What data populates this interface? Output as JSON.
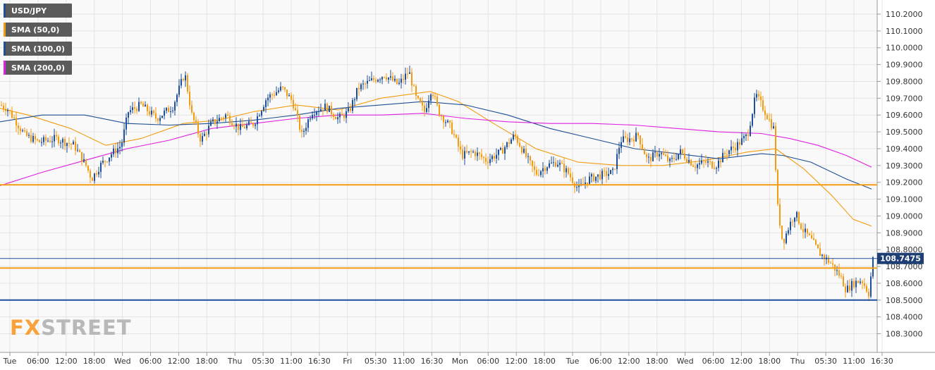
{
  "legend": [
    {
      "label": "USD/JPY",
      "color": "#1e4e9c"
    },
    {
      "label": "SMA (50,0)",
      "color": "#f39c12"
    },
    {
      "label": "SMA (100,0)",
      "color": "#1f4f95"
    },
    {
      "label": "SMA (200,0)",
      "color": "#e020e0"
    }
  ],
  "logo": {
    "fx": "FX",
    "rest": "STREET"
  },
  "chart_data": {
    "type": "candlestick",
    "symbol": "USD/JPY",
    "ylim": [
      108.25,
      110.25
    ],
    "y_ticks": [
      "110.2000",
      "110.1000",
      "110.0000",
      "109.9000",
      "109.8000",
      "109.7000",
      "109.6000",
      "109.5000",
      "109.4000",
      "109.3000",
      "109.2000",
      "109.1000",
      "109.0000",
      "108.9000",
      "108.8000",
      "108.7000",
      "108.6000",
      "108.5000",
      "108.4000",
      "108.3000"
    ],
    "x_ticks": [
      "Tue",
      "06:00",
      "12:00",
      "18:00",
      "Wed",
      "06:00",
      "12:00",
      "18:00",
      "Thu",
      "05:30",
      "11:00",
      "16:30",
      "Fri",
      "05:30",
      "11:00",
      "16:30",
      "Mon",
      "06:00",
      "12:00",
      "18:00",
      "Tue",
      "06:00",
      "12:00",
      "18:00",
      "Wed",
      "06:00",
      "12:00",
      "18:00",
      "Thu",
      "05:30",
      "11:00",
      "16:30"
    ],
    "current_price": "108.7475",
    "horizontal_levels": [
      {
        "value": 109.185,
        "color": "#f39c12"
      },
      {
        "value": 108.69,
        "color": "#f39c12"
      },
      {
        "value": 108.5,
        "color": "#1e4e9c"
      },
      {
        "value": 108.7475,
        "color": "#1e4e9c"
      }
    ],
    "price_path": [
      [
        0,
        109.66
      ],
      [
        10,
        109.64
      ],
      [
        20,
        109.58
      ],
      [
        35,
        109.48
      ],
      [
        55,
        109.44
      ],
      [
        80,
        109.46
      ],
      [
        105,
        109.42
      ],
      [
        122,
        109.3
      ],
      [
        130,
        109.22
      ],
      [
        142,
        109.3
      ],
      [
        158,
        109.37
      ],
      [
        172,
        109.42
      ],
      [
        182,
        109.62
      ],
      [
        200,
        109.66
      ],
      [
        222,
        109.58
      ],
      [
        245,
        109.65
      ],
      [
        262,
        109.85
      ],
      [
        272,
        109.6
      ],
      [
        285,
        109.45
      ],
      [
        300,
        109.55
      ],
      [
        320,
        109.6
      ],
      [
        340,
        109.52
      ],
      [
        360,
        109.55
      ],
      [
        378,
        109.7
      ],
      [
        400,
        109.76
      ],
      [
        415,
        109.68
      ],
      [
        428,
        109.48
      ],
      [
        442,
        109.62
      ],
      [
        462,
        109.65
      ],
      [
        480,
        109.58
      ],
      [
        495,
        109.62
      ],
      [
        508,
        109.76
      ],
      [
        525,
        109.8
      ],
      [
        545,
        109.84
      ],
      [
        565,
        109.78
      ],
      [
        580,
        109.86
      ],
      [
        590,
        109.7
      ],
      [
        602,
        109.62
      ],
      [
        612,
        109.76
      ],
      [
        622,
        109.62
      ],
      [
        640,
        109.52
      ],
      [
        655,
        109.36
      ],
      [
        672,
        109.38
      ],
      [
        690,
        109.33
      ],
      [
        710,
        109.38
      ],
      [
        730,
        109.48
      ],
      [
        745,
        109.36
      ],
      [
        760,
        109.25
      ],
      [
        775,
        109.3
      ],
      [
        790,
        109.32
      ],
      [
        805,
        109.26
      ],
      [
        820,
        109.16
      ],
      [
        835,
        109.22
      ],
      [
        850,
        109.24
      ],
      [
        870,
        109.26
      ],
      [
        880,
        109.45
      ],
      [
        895,
        109.46
      ],
      [
        905,
        109.48
      ],
      [
        918,
        109.33
      ],
      [
        935,
        109.38
      ],
      [
        950,
        109.32
      ],
      [
        965,
        109.38
      ],
      [
        985,
        109.3
      ],
      [
        1000,
        109.32
      ],
      [
        1015,
        109.3
      ],
      [
        1030,
        109.38
      ],
      [
        1045,
        109.42
      ],
      [
        1060,
        109.48
      ],
      [
        1072,
        109.72
      ],
      [
        1085,
        109.62
      ],
      [
        1097,
        109.52
      ],
      [
        1103,
        109.05
      ],
      [
        1110,
        108.84
      ],
      [
        1120,
        108.95
      ],
      [
        1128,
        109.02
      ],
      [
        1138,
        108.92
      ],
      [
        1150,
        108.86
      ],
      [
        1162,
        108.78
      ],
      [
        1178,
        108.72
      ],
      [
        1192,
        108.64
      ],
      [
        1200,
        108.56
      ],
      [
        1210,
        108.6
      ],
      [
        1222,
        108.62
      ],
      [
        1232,
        108.54
      ],
      [
        1238,
        108.74
      ]
    ],
    "series": [
      {
        "name": "SMA (50,0)",
        "color": "#f39c12",
        "points": [
          [
            0,
            109.64
          ],
          [
            40,
            109.6
          ],
          [
            100,
            109.52
          ],
          [
            150,
            109.42
          ],
          [
            200,
            109.46
          ],
          [
            260,
            109.55
          ],
          [
            310,
            109.57
          ],
          [
            360,
            109.62
          ],
          [
            420,
            109.66
          ],
          [
            480,
            109.63
          ],
          [
            540,
            109.7
          ],
          [
            610,
            109.74
          ],
          [
            650,
            109.68
          ],
          [
            700,
            109.55
          ],
          [
            760,
            109.4
          ],
          [
            820,
            109.32
          ],
          [
            880,
            109.3
          ],
          [
            940,
            109.3
          ],
          [
            1000,
            109.33
          ],
          [
            1060,
            109.38
          ],
          [
            1100,
            109.4
          ],
          [
            1140,
            109.28
          ],
          [
            1180,
            109.12
          ],
          [
            1210,
            108.98
          ],
          [
            1236,
            108.94
          ]
        ]
      },
      {
        "name": "SMA (100,0)",
        "color": "#1f4f95",
        "points": [
          [
            0,
            109.56
          ],
          [
            60,
            109.6
          ],
          [
            120,
            109.6
          ],
          [
            180,
            109.55
          ],
          [
            240,
            109.54
          ],
          [
            300,
            109.55
          ],
          [
            360,
            109.57
          ],
          [
            420,
            109.6
          ],
          [
            480,
            109.64
          ],
          [
            540,
            109.66
          ],
          [
            600,
            109.68
          ],
          [
            660,
            109.66
          ],
          [
            720,
            109.6
          ],
          [
            780,
            109.52
          ],
          [
            840,
            109.46
          ],
          [
            900,
            109.4
          ],
          [
            960,
            109.37
          ],
          [
            1020,
            109.34
          ],
          [
            1080,
            109.37
          ],
          [
            1110,
            109.36
          ],
          [
            1150,
            109.32
          ],
          [
            1200,
            109.22
          ],
          [
            1236,
            109.16
          ]
        ]
      },
      {
        "name": "SMA (200,0)",
        "color": "#e020e0",
        "points": [
          [
            0,
            109.18
          ],
          [
            60,
            109.26
          ],
          [
            120,
            109.33
          ],
          [
            180,
            109.4
          ],
          [
            240,
            109.45
          ],
          [
            300,
            109.52
          ],
          [
            360,
            109.55
          ],
          [
            420,
            109.58
          ],
          [
            480,
            109.6
          ],
          [
            540,
            109.6
          ],
          [
            600,
            109.61
          ],
          [
            660,
            109.58
          ],
          [
            720,
            109.56
          ],
          [
            780,
            109.55
          ],
          [
            840,
            109.55
          ],
          [
            900,
            109.54
          ],
          [
            960,
            109.52
          ],
          [
            1020,
            109.5
          ],
          [
            1080,
            109.49
          ],
          [
            1120,
            109.46
          ],
          [
            1160,
            109.42
          ],
          [
            1200,
            109.36
          ],
          [
            1236,
            109.29
          ]
        ]
      }
    ]
  }
}
